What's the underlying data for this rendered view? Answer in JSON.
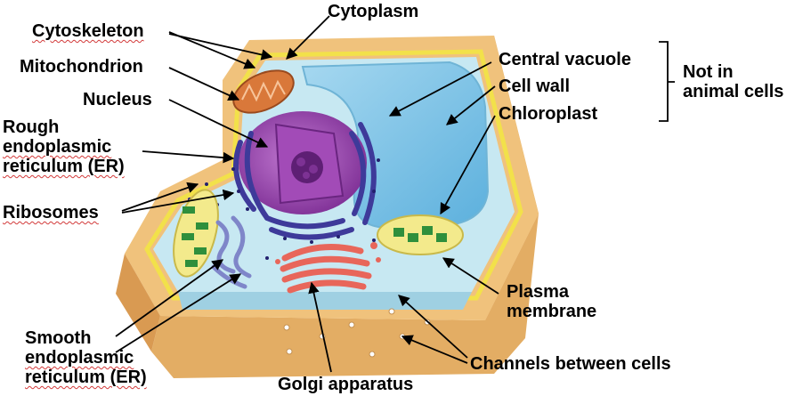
{
  "labels": {
    "cytoplasm": "Cytoplasm",
    "cytoskeleton": "Cytoskeleton",
    "mitochondrion": "Mitochondrion",
    "nucleus": "Nucleus",
    "rough_er_1": "Rough",
    "rough_er_2": "endoplasmic",
    "rough_er_3": "reticulum (ER)",
    "ribosomes": "Ribosomes",
    "smooth_er_1": "Smooth",
    "smooth_er_2": "endoplasmic",
    "smooth_er_3": "reticulum (ER)",
    "golgi": "Golgi apparatus",
    "central_vacuole": "Central vacuole",
    "cell_wall": "Cell wall",
    "chloroplast": "Chloroplast",
    "not_in_1": "Not in",
    "not_in_2": "animal cells",
    "plasma_1": "Plasma",
    "plasma_2": "membrane",
    "channels": "Channels between cells"
  },
  "colors": {
    "cell_wall": "#e8b46a",
    "cytoplasm": "#bfe3ee",
    "vacuole": "#7fc3e6",
    "nucleus": "#9c4fb0",
    "mitochondrion": "#d9783a",
    "golgi": "#e8665a",
    "chloroplast": "#3ea04a",
    "membrane": "#f2e14a"
  }
}
